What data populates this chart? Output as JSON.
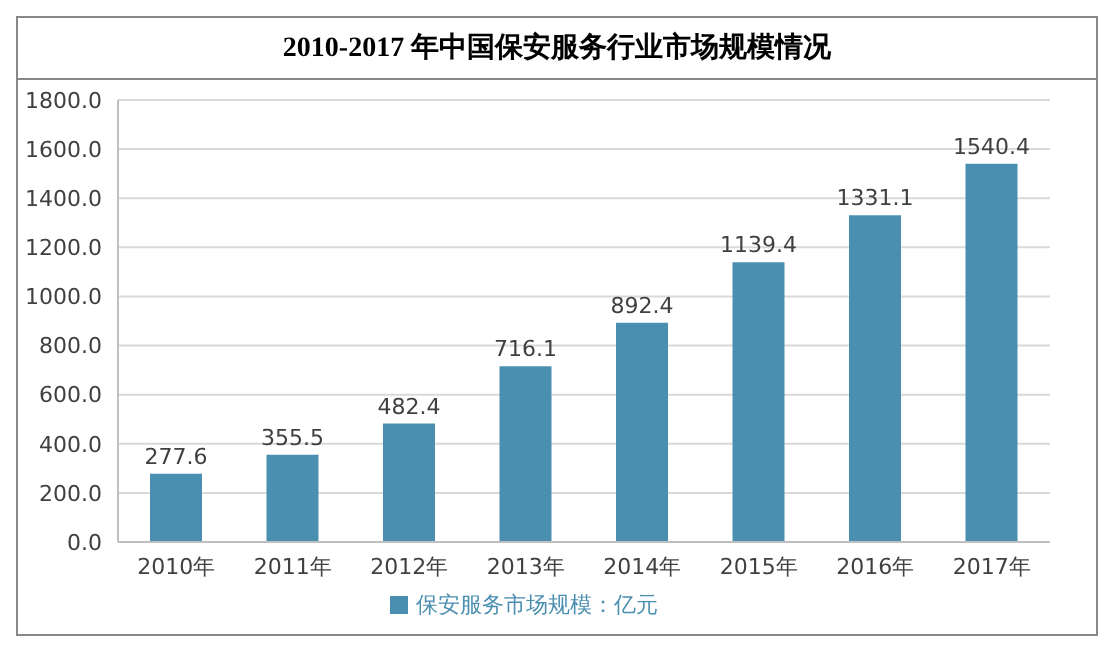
{
  "chart_data": {
    "type": "bar",
    "title": "2010-2017 年中国保安服务行业市场规模情况",
    "categories": [
      "2010年",
      "2011年",
      "2012年",
      "2013年",
      "2014年",
      "2015年",
      "2016年",
      "2017年"
    ],
    "series": [
      {
        "name": "保安服务市场规模：亿元",
        "color": "#4b8fb0",
        "values": [
          277.6,
          355.5,
          482.4,
          716.1,
          892.4,
          1139.4,
          1331.1,
          1540.4
        ]
      }
    ],
    "ylim": [
      0,
      1800
    ],
    "yticks": [
      {
        "value": 0,
        "label": "0.0"
      },
      {
        "value": 200,
        "label": "200.0"
      },
      {
        "value": 400,
        "label": "400.0"
      },
      {
        "value": 600,
        "label": "600.0"
      },
      {
        "value": 800,
        "label": "800.0"
      },
      {
        "value": 1000,
        "label": "1000.0"
      },
      {
        "value": 1200,
        "label": "1200.0"
      },
      {
        "value": 1400,
        "label": "1400.0"
      },
      {
        "value": 1600,
        "label": "1600.0"
      },
      {
        "value": 1800,
        "label": "1800.0"
      }
    ],
    "grid": "y",
    "legend": "bottom",
    "data_labels": true
  }
}
